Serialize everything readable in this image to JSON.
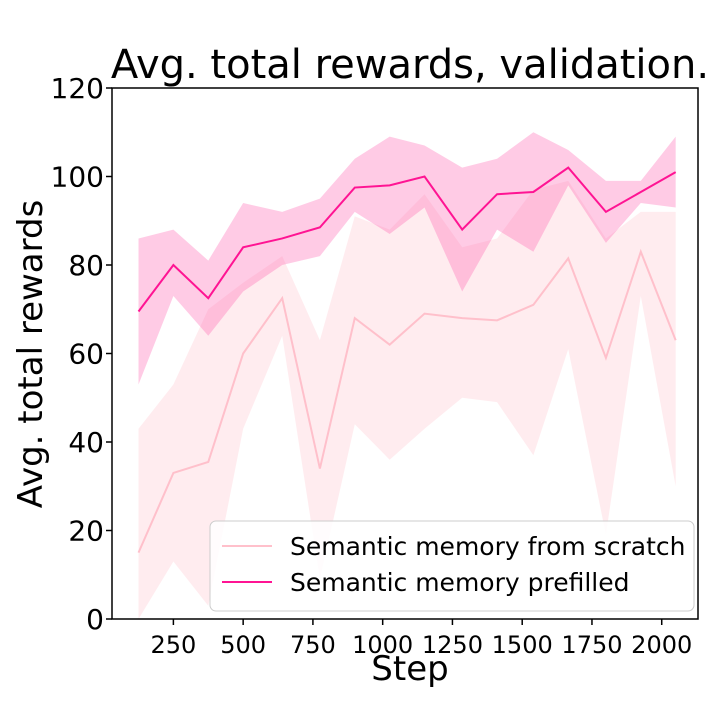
{
  "chart_data": {
    "type": "line",
    "title": "Avg. total rewards, validation.",
    "xlabel": "Step",
    "ylabel": "Avg. total rewards",
    "xlim": [
      30,
      2130
    ],
    "ylim": [
      0,
      120
    ],
    "xticks": [
      250,
      500,
      750,
      1000,
      1250,
      1500,
      1750,
      2000
    ],
    "yticks": [
      0,
      20,
      40,
      60,
      80,
      100,
      120
    ],
    "legend_position": "lower-right",
    "x": [
      125,
      250,
      375,
      500,
      640,
      775,
      900,
      1025,
      1150,
      1285,
      1410,
      1540,
      1665,
      1800,
      1925,
      2050
    ],
    "series": [
      {
        "name": "Semantic memory from scratch",
        "color": "#ffc0cb",
        "band_color": "#ffc0cb",
        "band_opacity": 0.3,
        "values": [
          15,
          33,
          35.5,
          60,
          72.5,
          34,
          68,
          62,
          69,
          68,
          67.5,
          71,
          81.5,
          59,
          83,
          63
        ],
        "upper": [
          43,
          53,
          70,
          76,
          82,
          63,
          91,
          88,
          96,
          84,
          86,
          97,
          99,
          86,
          92,
          92
        ],
        "lower": [
          0,
          13,
          3,
          43,
          64,
          9,
          44,
          36,
          43,
          50,
          49,
          37,
          61,
          19,
          73,
          30
        ]
      },
      {
        "name": "Semantic memory prefilled",
        "color": "#ff1493",
        "band_color": "#ff69b4",
        "band_opacity": 0.35,
        "values": [
          69.5,
          80,
          72.5,
          84,
          86,
          88.5,
          97.5,
          98,
          100,
          88,
          96,
          96.5,
          102,
          92,
          96.5,
          101
        ],
        "upper": [
          86,
          88,
          81,
          94,
          92,
          95,
          104,
          109,
          107,
          102,
          104,
          110,
          106,
          99,
          99,
          109
        ],
        "lower": [
          53,
          73,
          64,
          74,
          80,
          82,
          92,
          87,
          93,
          74,
          88,
          83,
          98,
          85,
          94,
          93
        ]
      }
    ]
  }
}
